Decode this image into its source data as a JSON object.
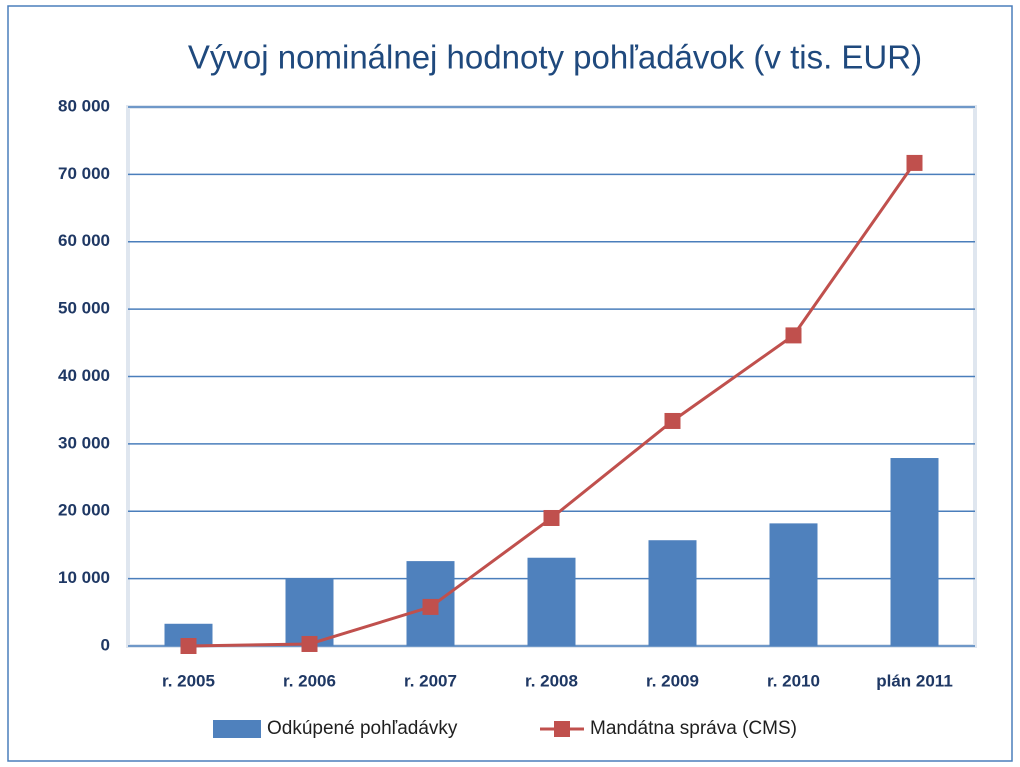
{
  "chart_data": {
    "type": "combo",
    "title": "Vývoj nominálnej hodnoty pohľadávok (v tis. EUR)",
    "categories": [
      "r. 2005",
      "r. 2006",
      "r. 2007",
      "r. 2008",
      "r. 2009",
      "r. 2010",
      "plán 2011"
    ],
    "series": [
      {
        "name": "Odkúpené pohľadávky",
        "type": "bar",
        "color": "#4f81bd",
        "values": [
          3300,
          10000,
          12600,
          13100,
          15700,
          18200,
          27900
        ]
      },
      {
        "name": "Mandátna správa (CMS)",
        "type": "line",
        "color": "#c0504d",
        "values": [
          0,
          300,
          5800,
          19000,
          33400,
          46100,
          71700
        ]
      }
    ],
    "ylim": [
      0,
      80000
    ],
    "yticks": [
      0,
      {
        "value": 10000,
        "label": "10 000"
      },
      {
        "value": 20000,
        "label": "20 000"
      },
      {
        "value": 30000,
        "label": "30 000"
      },
      {
        "value": 40000,
        "label": "40 000"
      },
      {
        "value": 50000,
        "label": "50 000"
      },
      {
        "value": 60000,
        "label": "60 000"
      },
      {
        "value": 70000,
        "label": "70 000"
      },
      {
        "value": 80000,
        "label": "80 000"
      }
    ],
    "grid": true,
    "legend": "bottom"
  }
}
